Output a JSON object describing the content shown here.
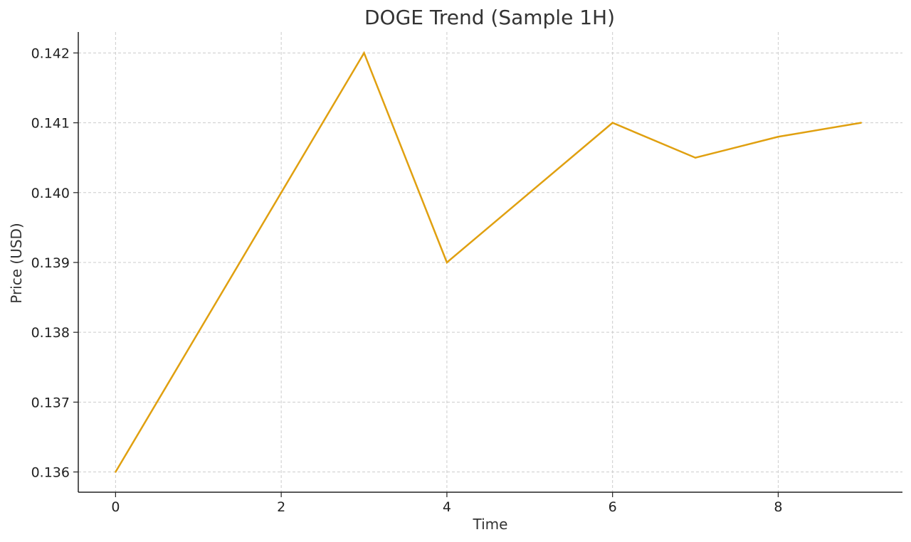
{
  "chart_data": {
    "type": "line",
    "title": "DOGE Trend (Sample 1H)",
    "xlabel": "Time",
    "ylabel": "Price (USD)",
    "x": [
      0,
      1,
      2,
      3,
      4,
      5,
      6,
      7,
      8,
      9
    ],
    "series": [
      {
        "values": [
          0.136,
          0.138,
          0.14,
          0.142,
          0.139,
          0.14,
          0.141,
          0.1405,
          0.1408,
          0.141
        ],
        "color": "#e0a010"
      }
    ],
    "xlim": [
      -0.45,
      9.5
    ],
    "ylim": [
      0.13571,
      0.1423
    ],
    "xticks": [
      0,
      2,
      4,
      6,
      8
    ],
    "xtick_labels": [
      "0",
      "2",
      "4",
      "6",
      "8"
    ],
    "yticks": [
      0.136,
      0.137,
      0.138,
      0.139,
      0.14,
      0.141,
      0.142
    ],
    "ytick_labels": [
      "0.136",
      "0.137",
      "0.138",
      "0.139",
      "0.140",
      "0.141",
      "0.142"
    ],
    "grid": true,
    "legend": "none"
  }
}
